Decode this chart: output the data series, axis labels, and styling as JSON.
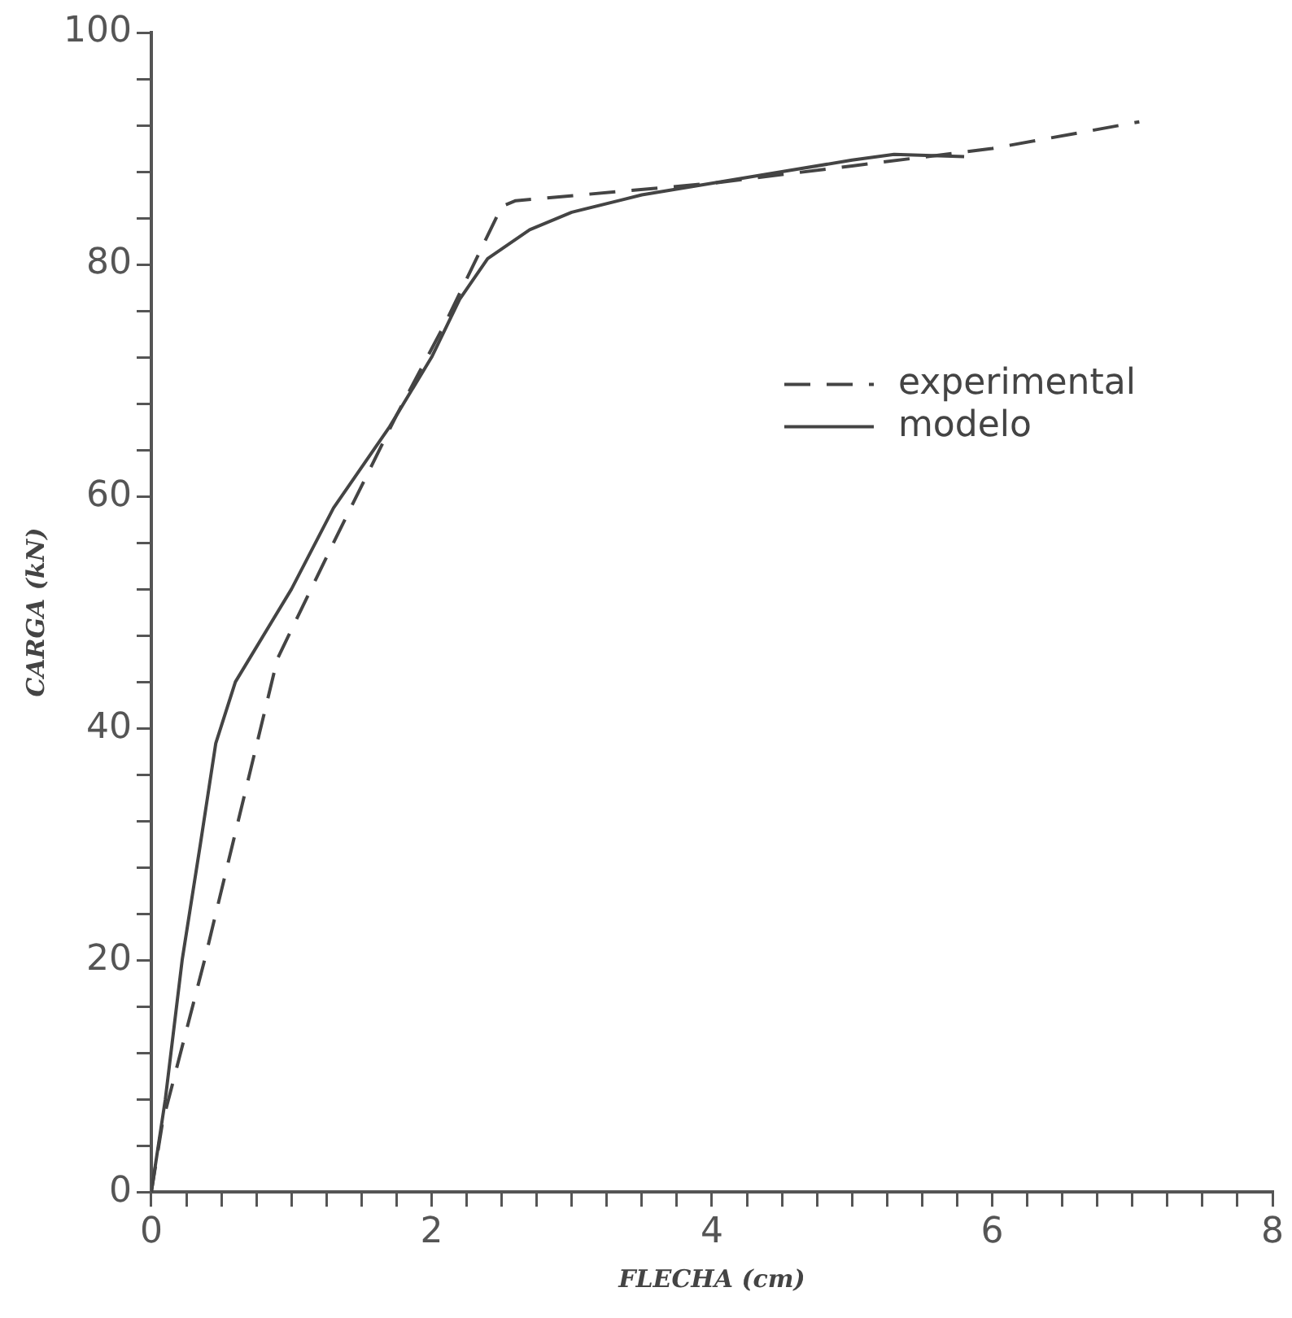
{
  "chart_data": {
    "type": "line",
    "xlabel": "FLECHA (cm)",
    "ylabel": "CARGA (kN)",
    "legend": "right",
    "grid": false,
    "marker": "none",
    "xlim": [
      0,
      8
    ],
    "ylim": [
      0,
      100
    ],
    "xticks": [
      0,
      {
        "value": 0.25,
        "label": null
      },
      {
        "value": 0.5,
        "label": null
      },
      {
        "value": 0.75,
        "label": null
      },
      {
        "value": 1,
        "label": null
      },
      {
        "value": 1.25,
        "label": null
      },
      {
        "value": 1.5,
        "label": null
      },
      {
        "value": 1.75,
        "label": null
      },
      2,
      {
        "value": 2.25,
        "label": null
      },
      {
        "value": 2.5,
        "label": null
      },
      {
        "value": 2.75,
        "label": null
      },
      {
        "value": 3,
        "label": null
      },
      {
        "value": 3.25,
        "label": null
      },
      {
        "value": 3.5,
        "label": null
      },
      {
        "value": 3.75,
        "label": null
      },
      4,
      {
        "value": 4.25,
        "label": null
      },
      {
        "value": 4.5,
        "label": null
      },
      {
        "value": 4.75,
        "label": null
      },
      {
        "value": 5,
        "label": null
      },
      {
        "value": 5.25,
        "label": null
      },
      {
        "value": 5.5,
        "label": null
      },
      {
        "value": 5.75,
        "label": null
      },
      6,
      {
        "value": 6.25,
        "label": null
      },
      {
        "value": 6.5,
        "label": null
      },
      {
        "value": 6.75,
        "label": null
      },
      {
        "value": 7,
        "label": null
      },
      {
        "value": 7.25,
        "label": null
      },
      {
        "value": 7.5,
        "label": null
      },
      {
        "value": 7.75,
        "label": null
      },
      8
    ],
    "yticks": [
      0,
      {
        "value": 4,
        "label": null
      },
      {
        "value": 8,
        "label": null
      },
      {
        "value": 12,
        "label": null
      },
      {
        "value": 16,
        "label": null
      },
      20,
      {
        "value": 24,
        "label": null
      },
      {
        "value": 28,
        "label": null
      },
      {
        "value": 32,
        "label": null
      },
      {
        "value": 36,
        "label": null
      },
      40,
      {
        "value": 44,
        "label": null
      },
      {
        "value": 48,
        "label": null
      },
      {
        "value": 52,
        "label": null
      },
      {
        "value": 56,
        "label": null
      },
      60,
      {
        "value": 64,
        "label": null
      },
      {
        "value": 68,
        "label": null
      },
      {
        "value": 72,
        "label": null
      },
      {
        "value": 76,
        "label": null
      },
      80,
      {
        "value": 84,
        "label": null
      },
      {
        "value": 88,
        "label": null
      },
      {
        "value": 92,
        "label": null
      },
      {
        "value": 96,
        "label": null
      },
      100
    ],
    "series": [
      {
        "name": "experimental",
        "color": "#444444",
        "line_style": "dashed",
        "x": [
          0,
          0.08,
          0.38,
          0.76,
          0.9,
          1.3,
          1.75,
          2.1,
          2.5,
          2.6,
          4,
          5,
          6,
          7.05
        ],
        "values": [
          0,
          6,
          20,
          39,
          46,
          56,
          67,
          75,
          85,
          85.5,
          87,
          88.5,
          90,
          92.3
        ]
      },
      {
        "name": "modelo",
        "color": "#444444",
        "line_style": "solid",
        "x": [
          0,
          0.1,
          0.22,
          0.35,
          0.46,
          0.6,
          1,
          1.3,
          1.7,
          2,
          2.2,
          2.4,
          2.7,
          3,
          3.5,
          4,
          4.5,
          5,
          5.3,
          5.8
        ],
        "values": [
          0,
          8,
          20,
          30,
          38.7,
          44,
          52,
          59,
          66,
          72,
          77,
          80.5,
          83,
          84.5,
          86,
          87,
          88,
          89,
          89.5,
          89.3
        ]
      }
    ]
  }
}
